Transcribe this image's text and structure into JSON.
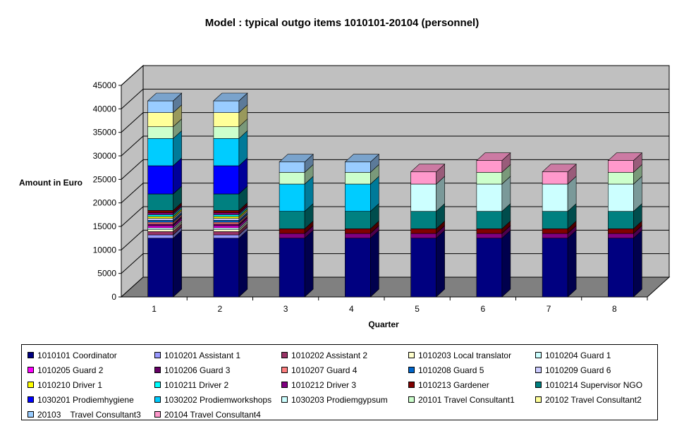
{
  "chart_data": {
    "type": "bar",
    "stacked": true,
    "three_d": true,
    "title": "Model : typical outgo items 1010101-20104 (personnel)",
    "xlabel": "Quarter",
    "ylabel": "Amount in Euro",
    "categories": [
      "1",
      "2",
      "3",
      "4",
      "5",
      "6",
      "7",
      "8"
    ],
    "ylim": [
      0,
      45000
    ],
    "yticks": [
      0,
      5000,
      10000,
      15000,
      20000,
      25000,
      30000,
      35000,
      40000,
      45000
    ],
    "grid": true,
    "legend_position": "bottom",
    "series": [
      {
        "name": "1010101 Coordinator",
        "color": "#000080",
        "values": [
          12500,
          12500,
          12500,
          12500,
          12500,
          12500,
          12500,
          12500
        ]
      },
      {
        "name": "1010201 Assistant 1",
        "color": "#9999ff",
        "values": [
          700,
          700,
          0,
          0,
          0,
          0,
          0,
          0
        ]
      },
      {
        "name": "1010202 Assistant 2",
        "color": "#993366",
        "values": [
          700,
          700,
          0,
          0,
          0,
          0,
          0,
          0
        ]
      },
      {
        "name": "1010203 Local translator",
        "color": "#ffffcc",
        "values": [
          400,
          400,
          0,
          0,
          0,
          0,
          0,
          0
        ]
      },
      {
        "name": "1010204 Guard 1",
        "color": "#ccffff",
        "values": [
          400,
          400,
          0,
          0,
          0,
          0,
          0,
          0
        ]
      },
      {
        "name": "1010205 Guard 2",
        "color": "#ff00ff",
        "values": [
          400,
          400,
          0,
          0,
          0,
          0,
          0,
          0
        ]
      },
      {
        "name": "1010206 Guard 3",
        "color": "#660066",
        "values": [
          400,
          400,
          0,
          0,
          0,
          0,
          0,
          0
        ]
      },
      {
        "name": "1010207 Guard 4",
        "color": "#ff8080",
        "values": [
          400,
          400,
          0,
          0,
          0,
          0,
          0,
          0
        ]
      },
      {
        "name": "1010208 Guard 5",
        "color": "#0066cc",
        "values": [
          400,
          400,
          0,
          0,
          0,
          0,
          0,
          0
        ]
      },
      {
        "name": "1010209 Guard 6",
        "color": "#ccccff",
        "values": [
          400,
          400,
          0,
          0,
          0,
          0,
          0,
          0
        ]
      },
      {
        "name": "1010210 Driver 1",
        "color": "#ffff00",
        "values": [
          400,
          400,
          0,
          0,
          0,
          0,
          0,
          0
        ]
      },
      {
        "name": "1010211 Driver 2",
        "color": "#00ffff",
        "values": [
          400,
          400,
          0,
          0,
          0,
          0,
          0,
          0
        ]
      },
      {
        "name": "1010212 Driver 3",
        "color": "#800080",
        "values": [
          400,
          400,
          1000,
          1000,
          1000,
          1000,
          1000,
          1000
        ]
      },
      {
        "name": "1010213 Gardener",
        "color": "#800000",
        "values": [
          500,
          500,
          1000,
          1000,
          1000,
          1000,
          1000,
          1000
        ]
      },
      {
        "name": "1010214 Supervisor NGO",
        "color": "#008080",
        "values": [
          3500,
          3500,
          3700,
          3700,
          3700,
          3700,
          3700,
          3700
        ]
      },
      {
        "name": "1030201 Prodiemhygiene",
        "color": "#0000ff",
        "values": [
          6000,
          6000,
          0,
          0,
          0,
          0,
          0,
          0
        ]
      },
      {
        "name": "1030202 Prodiemworkshops",
        "color": "#00ccff",
        "values": [
          5800,
          5800,
          5800,
          5800,
          0,
          0,
          0,
          0
        ]
      },
      {
        "name": "1030203 Prodiemgypsum",
        "color": "#ccffff",
        "values": [
          0,
          0,
          0,
          0,
          5800,
          5800,
          5800,
          5800
        ]
      },
      {
        "name": "20101 Travel Consultant1",
        "color": "#ccffcc",
        "values": [
          2500,
          2500,
          2500,
          2500,
          0,
          2500,
          0,
          2500
        ]
      },
      {
        "name": "20102 Travel Consultant2",
        "color": "#ffff99",
        "values": [
          3000,
          3000,
          0,
          0,
          0,
          0,
          0,
          0
        ]
      },
      {
        "name": "20103    Travel Consultant3",
        "color": "#99ccff",
        "values": [
          2500,
          2500,
          2200,
          2200,
          0,
          0,
          0,
          0
        ]
      },
      {
        "name": "20104 Travel Consultant4",
        "color": "#ff99cc",
        "values": [
          0,
          0,
          0,
          0,
          2600,
          2500,
          2600,
          2500
        ]
      }
    ]
  }
}
